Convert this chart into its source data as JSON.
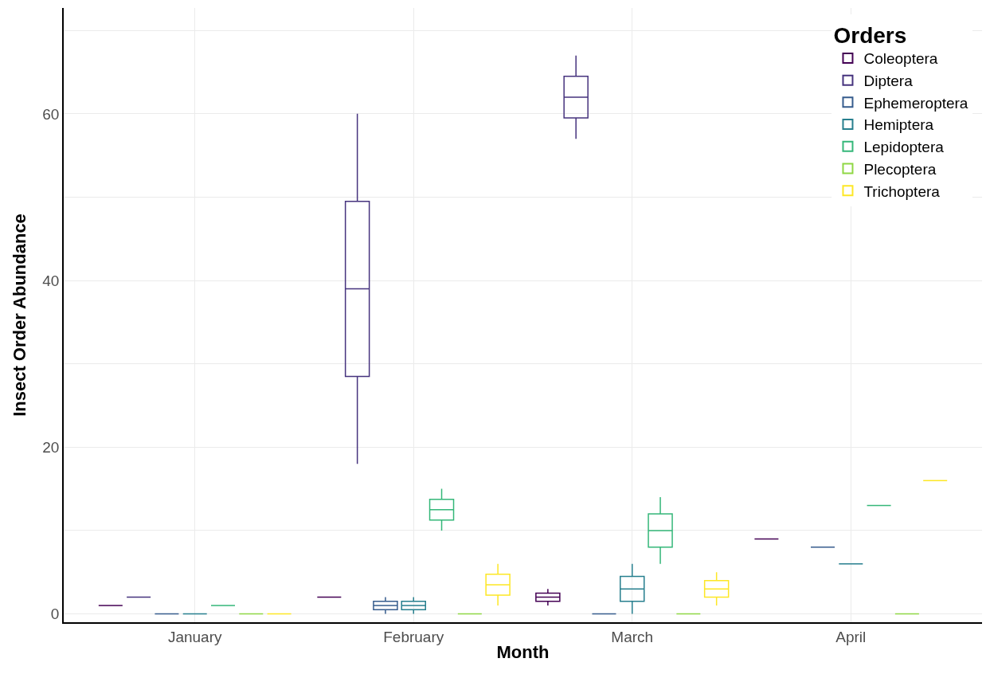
{
  "chart_data": {
    "type": "box",
    "xlabel": "Month",
    "ylabel": "Insect Order Abundance",
    "legend_title": "Orders",
    "legend": "top right",
    "grid": true,
    "categories": [
      "January",
      "February",
      "March",
      "April"
    ],
    "ylim": [
      -1,
      72.7
    ],
    "yticks": [
      0,
      {
        "value": 10,
        "label": null
      },
      20,
      {
        "value": 30,
        "label": null
      },
      40,
      {
        "value": 50,
        "label": null
      },
      60,
      {
        "value": 70,
        "label": null
      }
    ],
    "series": [
      {
        "name": "Coleoptera",
        "color": "#440154",
        "boxes": [
          {
            "low": 1,
            "q1": 1,
            "median": 1,
            "q3": 1,
            "high": 1
          },
          {
            "low": 2,
            "q1": 2,
            "median": 2,
            "q3": 2,
            "high": 2
          },
          {
            "low": 1,
            "q1": 1.5,
            "median": 2,
            "q3": 2.5,
            "high": 3
          },
          {
            "low": 9,
            "q1": 9,
            "median": 9,
            "q3": 9,
            "high": 9
          }
        ]
      },
      {
        "name": "Diptera",
        "color": "#46337e",
        "boxes": [
          {
            "low": 2,
            "q1": 2,
            "median": 2,
            "q3": 2,
            "high": 2
          },
          {
            "low": 18,
            "q1": 28.5,
            "median": 39,
            "q3": 49.5,
            "high": 60
          },
          {
            "low": 57,
            "q1": 59.5,
            "median": 62,
            "q3": 64.5,
            "high": 67
          },
          null
        ]
      },
      {
        "name": "Ephemeroptera",
        "color": "#365c8d",
        "boxes": [
          {
            "low": 0,
            "q1": 0,
            "median": 0,
            "q3": 0,
            "high": 0
          },
          {
            "low": 0,
            "q1": 0.5,
            "median": 1,
            "q3": 1.5,
            "high": 2
          },
          {
            "low": 0,
            "q1": 0,
            "median": 0,
            "q3": 0,
            "high": 0
          },
          {
            "low": 8,
            "q1": 8,
            "median": 8,
            "q3": 8,
            "high": 8
          }
        ]
      },
      {
        "name": "Hemiptera",
        "color": "#277f8e",
        "boxes": [
          {
            "low": 0,
            "q1": 0,
            "median": 0,
            "q3": 0,
            "high": 0
          },
          {
            "low": 0,
            "q1": 0.5,
            "median": 1,
            "q3": 1.5,
            "high": 2
          },
          {
            "low": 0,
            "q1": 1.5,
            "median": 3,
            "q3": 4.5,
            "high": 6
          },
          {
            "low": 6,
            "q1": 6,
            "median": 6,
            "q3": 6,
            "high": 6
          }
        ]
      },
      {
        "name": "Lepidoptera",
        "color": "#35b779",
        "boxes": [
          {
            "low": 1,
            "q1": 1,
            "median": 1,
            "q3": 1,
            "high": 1
          },
          {
            "low": 10,
            "q1": 11.25,
            "median": 12.5,
            "q3": 13.75,
            "high": 15
          },
          {
            "low": 6,
            "q1": 8,
            "median": 10,
            "q3": 12,
            "high": 14
          },
          {
            "low": 13,
            "q1": 13,
            "median": 13,
            "q3": 13,
            "high": 13
          }
        ]
      },
      {
        "name": "Plecoptera",
        "color": "#8fd744",
        "boxes": [
          {
            "low": 0,
            "q1": 0,
            "median": 0,
            "q3": 0,
            "high": 0
          },
          {
            "low": 0,
            "q1": 0,
            "median": 0,
            "q3": 0,
            "high": 0
          },
          {
            "low": 0,
            "q1": 0,
            "median": 0,
            "q3": 0,
            "high": 0
          },
          {
            "low": 0,
            "q1": 0,
            "median": 0,
            "q3": 0,
            "high": 0
          }
        ]
      },
      {
        "name": "Trichoptera",
        "color": "#fde725",
        "boxes": [
          {
            "low": 0,
            "q1": 0,
            "median": 0,
            "q3": 0,
            "high": 0
          },
          {
            "low": 1,
            "q1": 2.25,
            "median": 3.5,
            "q3": 4.75,
            "high": 6
          },
          {
            "low": 1,
            "q1": 2,
            "median": 3,
            "q3": 4,
            "high": 5
          },
          {
            "low": 16,
            "q1": 16,
            "median": 16,
            "q3": 16,
            "high": 16
          }
        ]
      }
    ]
  }
}
